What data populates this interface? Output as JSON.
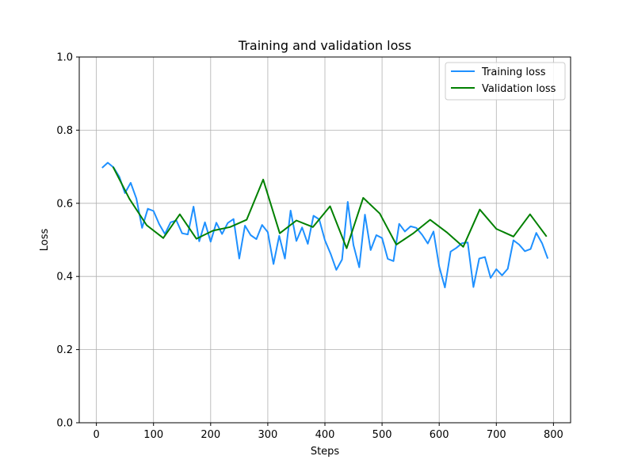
{
  "chart_data": {
    "type": "line",
    "title": "Training and validation loss",
    "xlabel": "Steps",
    "ylabel": "Loss",
    "xlim": [
      -30,
      830
    ],
    "ylim": [
      0.0,
      1.0
    ],
    "xticks": [
      0,
      100,
      200,
      300,
      400,
      500,
      600,
      700,
      800
    ],
    "yticks": [
      0.0,
      0.2,
      0.4,
      0.6,
      0.8,
      1.0
    ],
    "xtick_labels": [
      "0",
      "100",
      "200",
      "300",
      "400",
      "500",
      "600",
      "700",
      "800"
    ],
    "ytick_labels": [
      "0.0",
      "0.2",
      "0.4",
      "0.6",
      "0.8",
      "1.0"
    ],
    "grid": true,
    "legend_position": "top-right",
    "series": [
      {
        "name": "Training loss",
        "color": "#1e90ff",
        "x": [
          10,
          20,
          30,
          40,
          50,
          60,
          70,
          80,
          90,
          100,
          110,
          120,
          130,
          140,
          150,
          160,
          170,
          180,
          190,
          200,
          210,
          220,
          230,
          240,
          250,
          260,
          270,
          280,
          290,
          300,
          310,
          320,
          330,
          340,
          350,
          360,
          370,
          380,
          390,
          400,
          410,
          420,
          430,
          440,
          450,
          460,
          470,
          480,
          490,
          500,
          510,
          520,
          530,
          540,
          550,
          560,
          570,
          580,
          590,
          600,
          610,
          620,
          630,
          640,
          650,
          660,
          670,
          680,
          690,
          700,
          710,
          720,
          730,
          740,
          750,
          760,
          770,
          780,
          790
        ],
        "y": [
          0.697,
          0.711,
          0.698,
          0.673,
          0.628,
          0.656,
          0.613,
          0.533,
          0.585,
          0.579,
          0.543,
          0.516,
          0.548,
          0.553,
          0.518,
          0.515,
          0.591,
          0.496,
          0.548,
          0.495,
          0.547,
          0.516,
          0.546,
          0.557,
          0.449,
          0.539,
          0.513,
          0.502,
          0.541,
          0.521,
          0.434,
          0.511,
          0.449,
          0.58,
          0.497,
          0.534,
          0.489,
          0.566,
          0.556,
          0.499,
          0.462,
          0.418,
          0.446,
          0.604,
          0.486,
          0.425,
          0.569,
          0.472,
          0.513,
          0.505,
          0.448,
          0.442,
          0.544,
          0.523,
          0.537,
          0.533,
          0.514,
          0.49,
          0.523,
          0.427,
          0.37,
          0.468,
          0.478,
          0.491,
          0.493,
          0.371,
          0.449,
          0.453,
          0.396,
          0.42,
          0.403,
          0.421,
          0.499,
          0.487,
          0.469,
          0.475,
          0.519,
          0.491,
          0.449
        ]
      },
      {
        "name": "Validation loss",
        "color": "#008000",
        "x": [
          29,
          58,
          88,
          117,
          146,
          175,
          204,
          234,
          263,
          292,
          321,
          350,
          379,
          409,
          438,
          467,
          496,
          525,
          554,
          584,
          613,
          642,
          671,
          700,
          730,
          759,
          788
        ],
        "y": [
          0.7,
          0.612,
          0.54,
          0.505,
          0.57,
          0.503,
          0.525,
          0.535,
          0.555,
          0.665,
          0.518,
          0.553,
          0.535,
          0.592,
          0.477,
          0.615,
          0.572,
          0.487,
          0.517,
          0.555,
          0.521,
          0.481,
          0.583,
          0.53,
          0.509,
          0.57,
          0.509
        ]
      }
    ]
  }
}
